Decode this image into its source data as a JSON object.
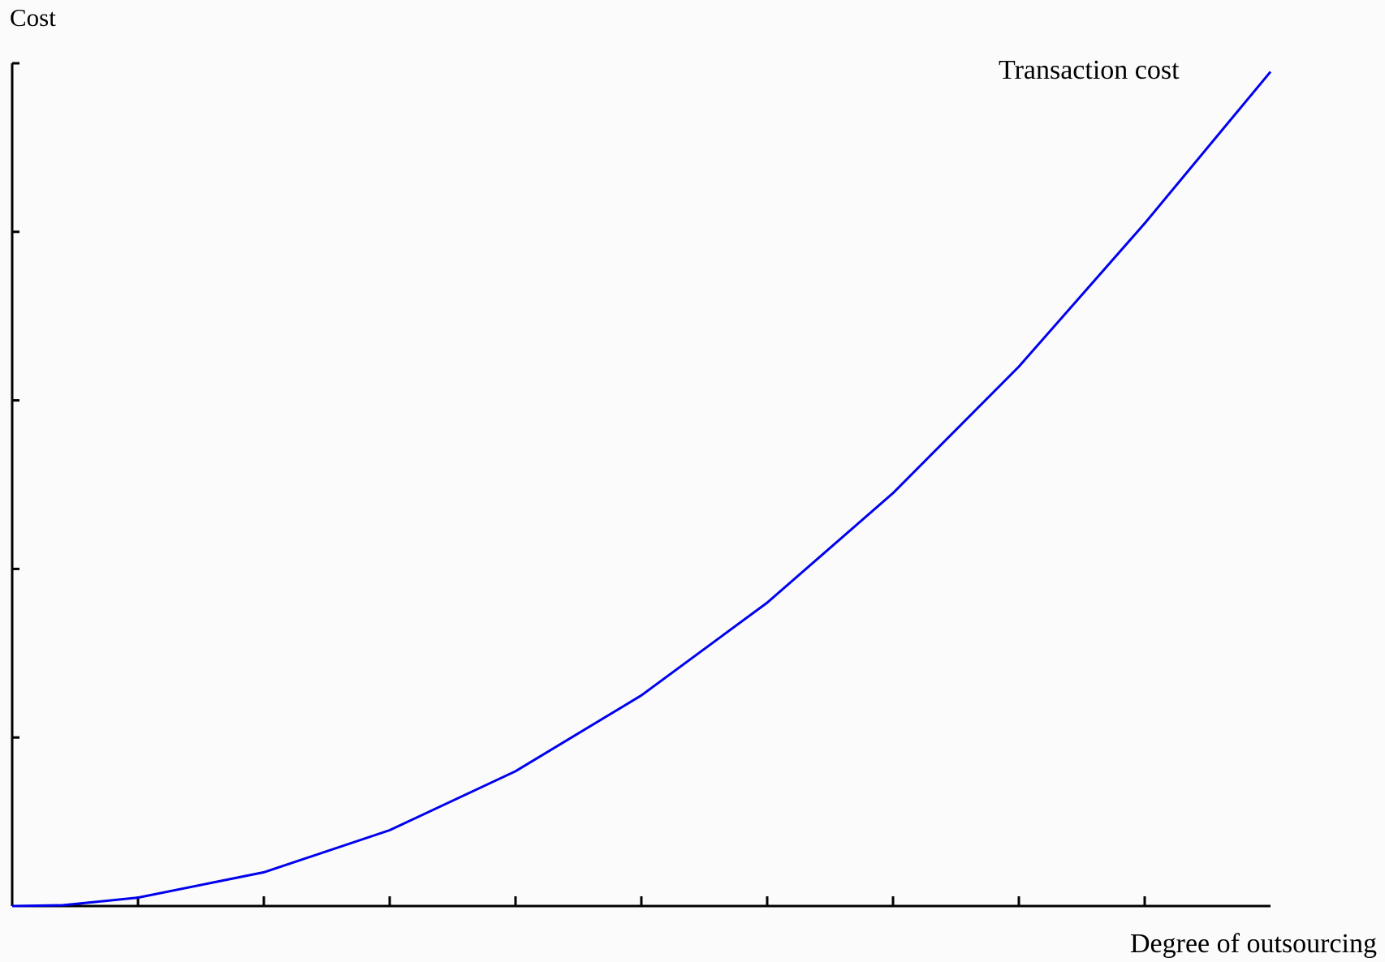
{
  "chart_data": {
    "type": "line",
    "title": "",
    "xlabel": "Degree of outsourcing",
    "ylabel": "Cost",
    "xlim": [
      0,
      1
    ],
    "ylim": [
      0,
      1
    ],
    "x_ticks": [
      0.1,
      0.2,
      0.3,
      0.4,
      0.5,
      0.6,
      0.7,
      0.8,
      0.9
    ],
    "y_ticks": [
      0.2,
      0.4,
      0.6,
      0.8,
      1.0
    ],
    "grid": false,
    "series": [
      {
        "name": "Transaction cost",
        "color": "#0000ee",
        "x": [
          0,
          0.04,
          0.1,
          0.2,
          0.3,
          0.4,
          0.5,
          0.6,
          0.7,
          0.8,
          0.9,
          1.0
        ],
        "y": [
          0,
          0.001,
          0.01,
          0.04,
          0.09,
          0.16,
          0.25,
          0.36,
          0.49,
          0.64,
          0.81,
          0.99
        ]
      }
    ]
  }
}
